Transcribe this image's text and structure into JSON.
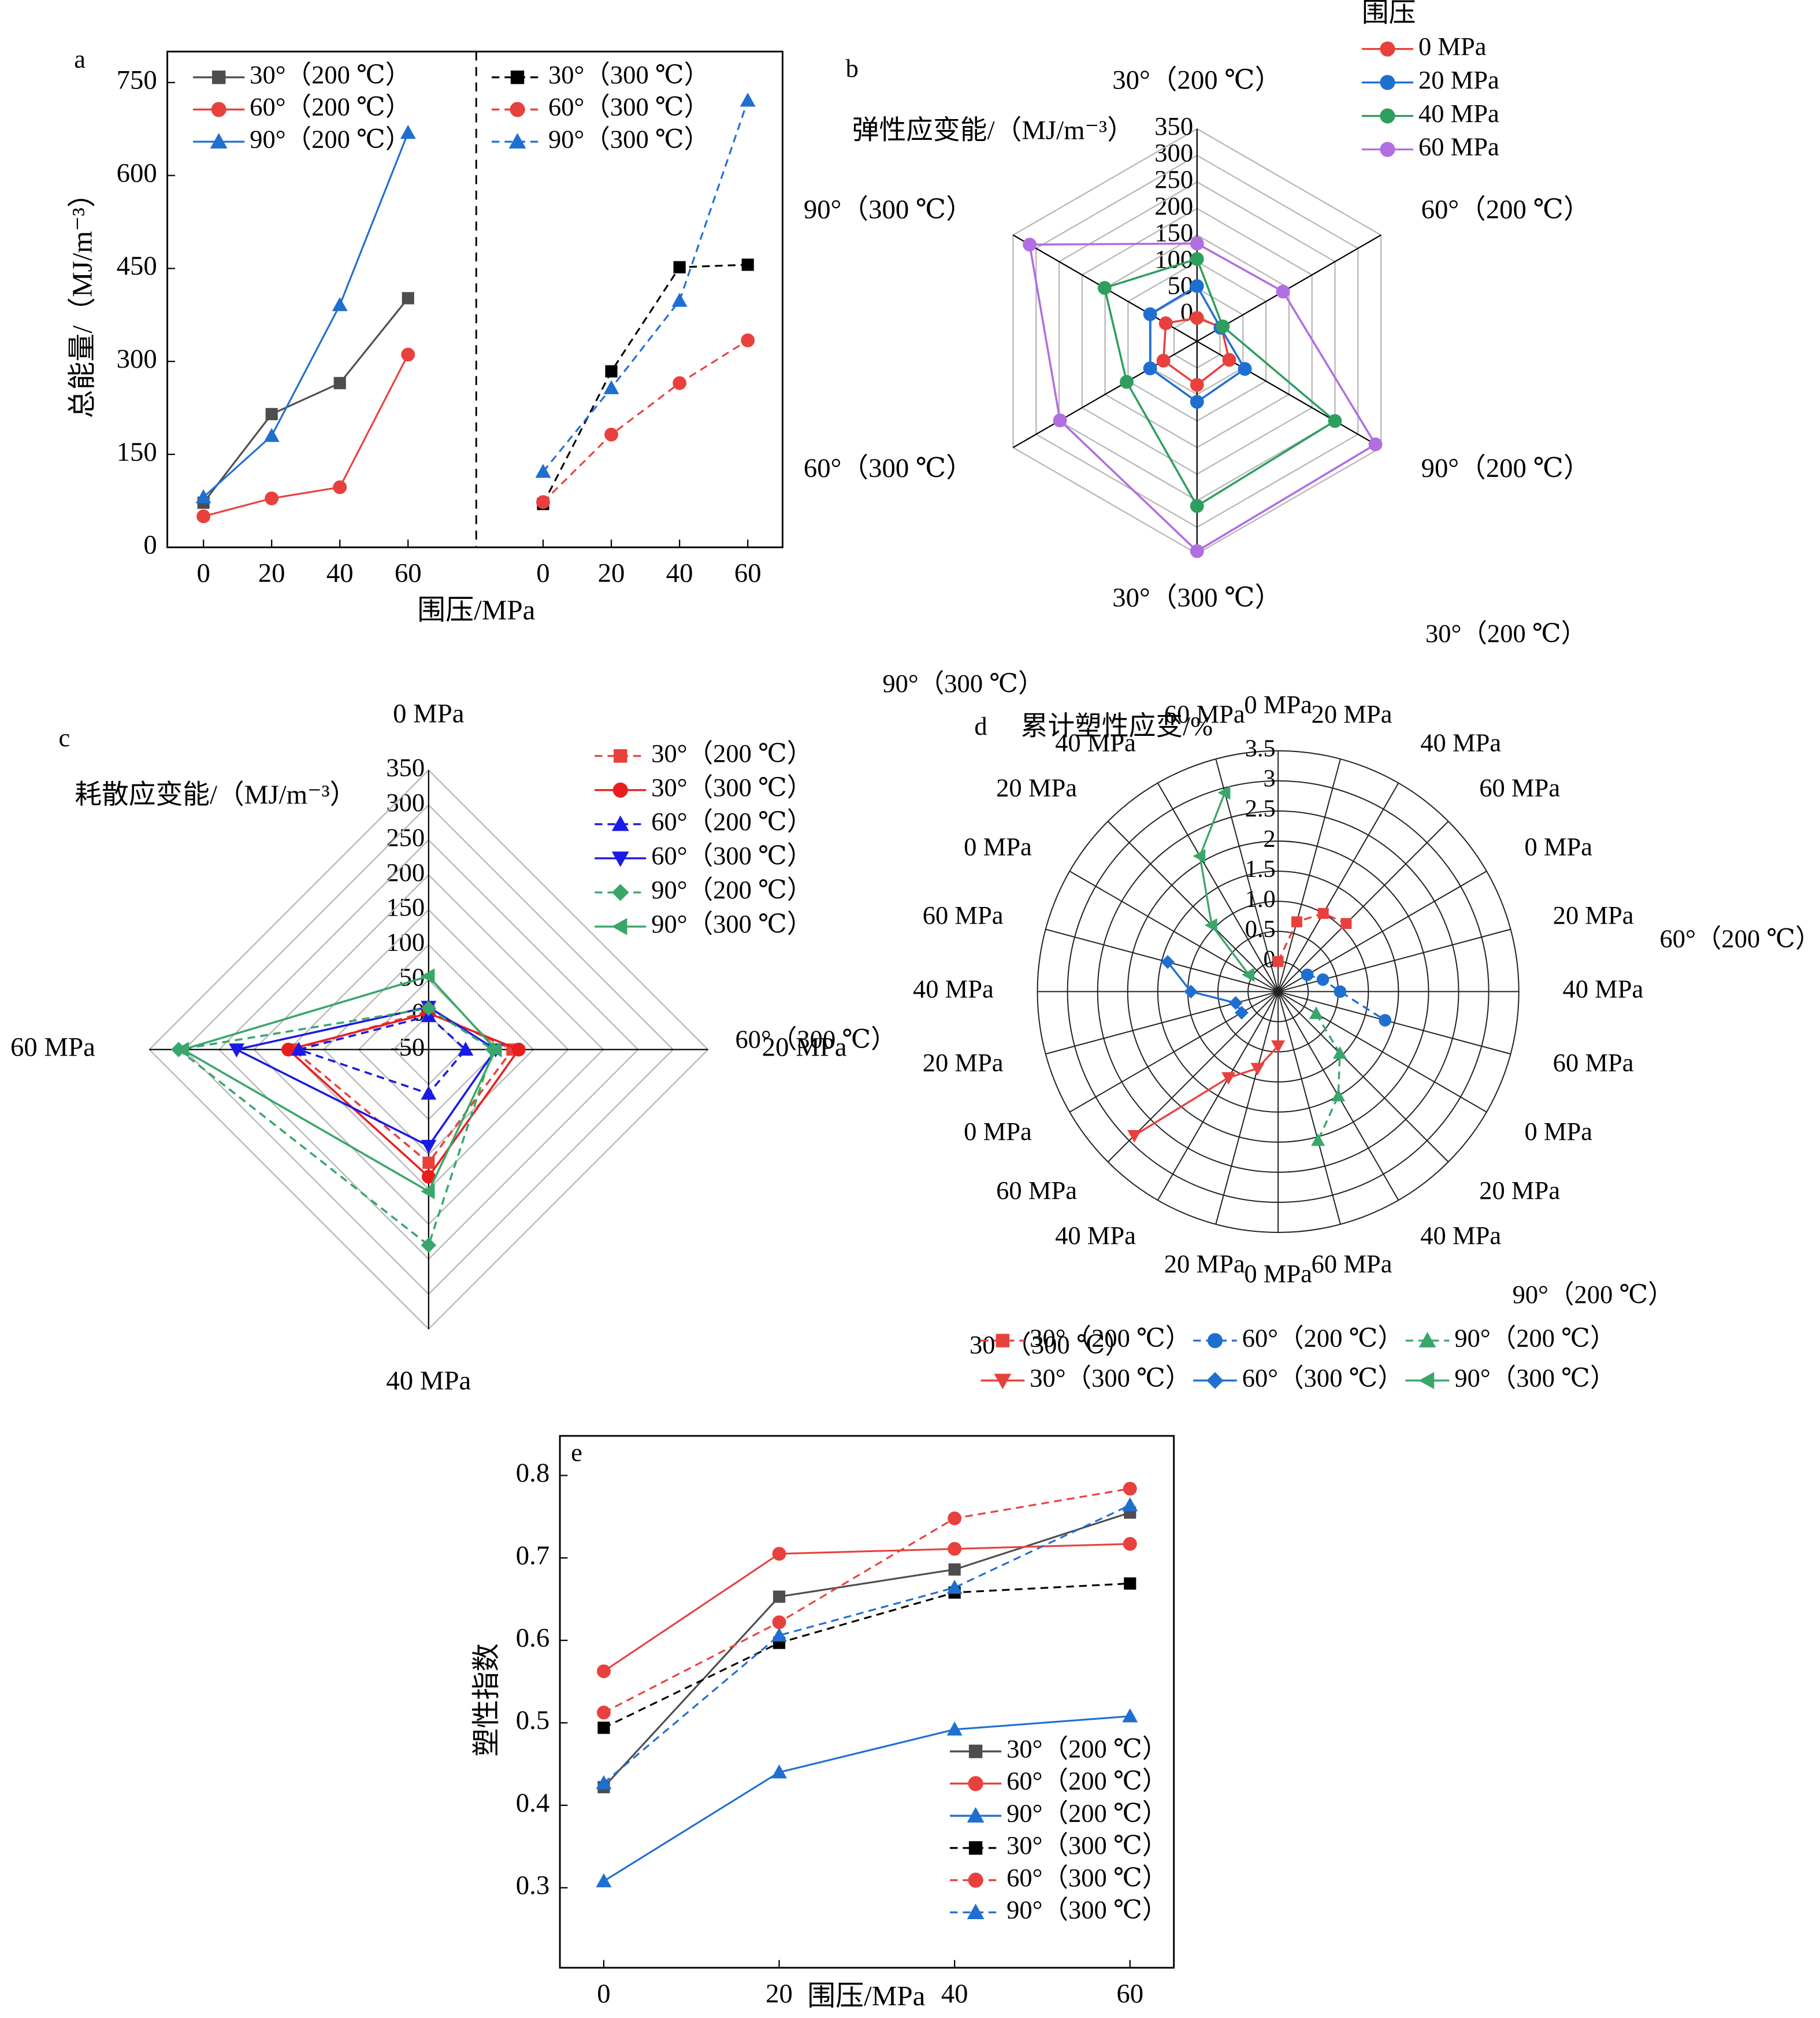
{
  "chart_data": [
    {
      "type": "line",
      "label": "a",
      "ylabel": "总能量/（MJ/m⁻³）",
      "xlabel": "围压/MPa",
      "ylim": [
        0,
        800
      ],
      "yticks": [
        0,
        150,
        300,
        450,
        600,
        750
      ],
      "panels": [
        {
          "x": [
            0,
            20,
            40,
            60
          ],
          "xlim": [
            -10.6,
            80
          ],
          "xticks": [
            0,
            20,
            40,
            60
          ],
          "series": [
            {
              "name": "30°（200 ℃）",
              "color": "#4d4d4d",
              "marker": "square",
              "linestyle": "solid",
              "values": [
                72,
                215,
                265,
                402
              ]
            },
            {
              "name": "60°（200 ℃）",
              "color": "#e8413d",
              "marker": "circle",
              "linestyle": "solid",
              "values": [
                50,
                79,
                97,
                311
              ]
            },
            {
              "name": "90°（200 ℃）",
              "color": "#1f6fd1",
              "marker": "triangle-up",
              "linestyle": "solid",
              "values": [
                81,
                180,
                391,
                669
              ]
            }
          ]
        },
        {
          "x": [
            0,
            20,
            40,
            60
          ],
          "xlim": [
            -19.6,
            70.2
          ],
          "xticks": [
            0,
            20,
            40,
            60
          ],
          "series": [
            {
              "name": "30°（300 ℃）",
              "color": "#000000",
              "marker": "square",
              "linestyle": "dashed",
              "values": [
                70,
                284,
                452,
                456
              ]
            },
            {
              "name": "60°（300 ℃）",
              "color": "#e8413d",
              "marker": "circle",
              "linestyle": "dashed",
              "values": [
                73,
                182,
                265,
                334
              ]
            },
            {
              "name": "90°（300 ℃）",
              "color": "#1f6fd1",
              "marker": "triangle-up",
              "linestyle": "dashed",
              "values": [
                122,
                257,
                398,
                721
              ]
            }
          ]
        }
      ]
    },
    {
      "type": "radar",
      "label": "b",
      "title": "弹性应变能/（MJ/m⁻³）",
      "legend_title": "围压",
      "axes": [
        "30°（200 ℃）",
        "60°（200 ℃）",
        "90°（200 ℃）",
        "30°（300 ℃）",
        "60°（300 ℃）",
        "90°（300 ℃）"
      ],
      "rlim": [
        -50,
        350
      ],
      "rticks": [
        0,
        50,
        100,
        150,
        200,
        250,
        300,
        350
      ],
      "series": [
        {
          "name": "0 MPa",
          "color": "#e8413d",
          "marker": "circle",
          "linestyle": "solid",
          "values": [
            -6,
            3,
            20,
            32,
            23,
            18
          ]
        },
        {
          "name": "20 MPa",
          "color": "#1f6fd1",
          "marker": "circle",
          "linestyle": "solid",
          "values": [
            54,
            1,
            54,
            64,
            52,
            52
          ]
        },
        {
          "name": "40 MPa",
          "color": "#2e9e5e",
          "marker": "circle",
          "linestyle": "solid",
          "values": [
            105,
            6,
            250,
            260,
            103,
            151
          ]
        },
        {
          "name": "60 MPa",
          "color": "#b06ee0",
          "marker": "circle",
          "linestyle": "solid",
          "values": [
            134,
            137,
            338,
            345,
            248,
            314
          ]
        }
      ]
    },
    {
      "type": "radar",
      "label": "c",
      "title": "耗散应变能/（MJ/m⁻³）",
      "axes": [
        "0 MPa",
        "20 MPa",
        "40 MPa",
        "60 MPa"
      ],
      "rlim": [
        -50,
        350
      ],
      "rticks": [
        -50,
        0,
        50,
        100,
        150,
        200,
        250,
        300,
        350
      ],
      "series": [
        {
          "name": "30°（200 ℃）",
          "color": "#e8413d",
          "marker": "square",
          "linestyle": "dashed",
          "values": [
            5,
            70,
            112,
            144
          ]
        },
        {
          "name": "30°（300 ℃）",
          "color": "#e81e1e",
          "marker": "circle",
          "linestyle": "solid",
          "values": [
            2,
            79,
            132,
            151
          ]
        },
        {
          "name": "60°（200 ℃）",
          "color": "#1a1ae6",
          "marker": "triangle-up",
          "linestyle": "dashed",
          "values": [
            -2,
            3,
            13,
            136
          ]
        },
        {
          "name": "60°（300 ℃）",
          "color": "#1a1ae6",
          "marker": "triangle-down",
          "linestyle": "solid",
          "values": [
            11,
            46,
            88,
            225
          ]
        },
        {
          "name": "90°（200 ℃）",
          "color": "#3aa66a",
          "marker": "diamond",
          "linestyle": "dashed",
          "values": [
            9,
            42,
            230,
            308
          ]
        },
        {
          "name": "90°（300 ℃）",
          "color": "#3aa66a",
          "marker": "triangle-left",
          "linestyle": "solid",
          "values": [
            55,
            46,
            153,
            302
          ]
        }
      ]
    },
    {
      "type": "polar",
      "label": "d",
      "title": "累计塑性应变/%",
      "categories": [
        "0 MPa",
        "20 MPa",
        "40 MPa",
        "60 MPa",
        "0 MPa",
        "20 MPa",
        "40 MPa",
        "60 MPa",
        "0 MPa",
        "20 MPa",
        "40 MPa",
        "60 MPa",
        "0 MPa",
        "20 MPa",
        "40 MPa",
        "60 MPa",
        "0 MPa",
        "20 MPa",
        "40 MPa",
        "60 MPa",
        "0 MPa",
        "20 MPa",
        "40 MPa",
        "60 MPa"
      ],
      "groups": [
        "30°（200 ℃）",
        "60°（200 ℃）",
        "90°（200 ℃）",
        "30°（300 ℃）",
        "60°（300 ℃）",
        "90°（300 ℃）"
      ],
      "rlim": [
        -0.5,
        3.5
      ],
      "rticks": [
        0,
        0.5,
        {
          "value": 1,
          "label": "1.0"
        },
        1.5,
        2,
        2.5,
        3,
        3.5
      ],
      "series": [
        {
          "name": "30°（200 ℃）",
          "color": "#e8413d",
          "marker": "square",
          "linestyle": "dashed",
          "values": [
            0.0,
            0.7,
            1.0,
            1.1,
            null,
            null,
            null,
            null,
            null,
            null,
            null,
            null,
            null,
            null,
            null,
            null,
            null,
            null,
            null,
            null,
            null,
            null,
            null,
            null
          ]
        },
        {
          "name": "60°（200 ℃）",
          "color": "#1f6fd1",
          "marker": "circle",
          "linestyle": "dashed",
          "values": [
            null,
            null,
            null,
            null,
            0.06,
            0.27,
            0.53,
            1.34,
            null,
            null,
            null,
            null,
            null,
            null,
            null,
            null,
            null,
            null,
            null,
            null,
            null,
            null,
            null,
            null
          ]
        },
        {
          "name": "90°（200 ℃）",
          "color": "#3aa66a",
          "marker": "triangle-up",
          "linestyle": "dashed",
          "values": [
            null,
            null,
            null,
            null,
            null,
            null,
            null,
            null,
            0.23,
            0.95,
            1.5,
            2.06,
            null,
            null,
            null,
            null,
            null,
            null,
            null,
            null,
            null,
            null,
            null,
            null
          ]
        },
        {
          "name": "30°（300 ℃）",
          "color": "#e8413d",
          "marker": "triangle-down",
          "linestyle": "solid",
          "values": [
            null,
            null,
            null,
            null,
            null,
            null,
            null,
            null,
            null,
            null,
            null,
            null,
            0.4,
            0.82,
            1.15,
            2.88,
            null,
            null,
            null,
            null,
            null,
            null,
            null,
            null
          ]
        },
        {
          "name": "60°（300 ℃）",
          "color": "#1f6fd1",
          "marker": "diamond",
          "linestyle": "solid",
          "values": [
            null,
            null,
            null,
            null,
            null,
            null,
            null,
            null,
            null,
            null,
            null,
            null,
            null,
            null,
            null,
            null,
            0.2,
            0.23,
            0.95,
            1.4,
            null,
            null,
            null,
            null
          ]
        },
        {
          "name": "90°（300 ℃）",
          "color": "#3aa66a",
          "marker": "triangle-left",
          "linestyle": "solid",
          "values": [
            null,
            null,
            null,
            null,
            null,
            null,
            null,
            null,
            null,
            null,
            null,
            null,
            null,
            null,
            null,
            null,
            null,
            null,
            null,
            null,
            0.06,
            1.06,
            2.1,
            2.92
          ]
        }
      ]
    },
    {
      "type": "line",
      "label": "e",
      "ylabel": "塑性指数",
      "xlabel": "围压/MPa",
      "ylim": [
        0.203,
        0.848
      ],
      "yticks": [
        0.3,
        0.4,
        0.5,
        0.6,
        0.7,
        0.8
      ],
      "x": [
        0,
        20,
        40,
        60
      ],
      "xlim": [
        -5,
        65
      ],
      "xticks": [
        0,
        20,
        40,
        60
      ],
      "series": [
        {
          "name": "30°（200 ℃）",
          "color": "#4d4d4d",
          "marker": "square",
          "linestyle": "solid",
          "values": [
            0.422,
            0.653,
            0.686,
            0.755
          ]
        },
        {
          "name": "60°（200 ℃）",
          "color": "#e8413d",
          "marker": "circle",
          "linestyle": "solid",
          "values": [
            0.5625,
            0.705,
            0.711,
            0.717
          ]
        },
        {
          "name": "90°（200 ℃）",
          "color": "#1f6fd1",
          "marker": "triangle-up",
          "linestyle": "solid",
          "values": [
            0.308,
            0.44,
            0.492,
            0.508
          ]
        },
        {
          "name": "30°（300 ℃）",
          "color": "#000000",
          "marker": "square",
          "linestyle": "dashed",
          "values": [
            0.494,
            0.597,
            0.658,
            0.669
          ]
        },
        {
          "name": "60°（300 ℃）",
          "color": "#e8413d",
          "marker": "circle",
          "linestyle": "dashed",
          "values": [
            0.5125,
            0.622,
            0.748,
            0.784
          ]
        },
        {
          "name": "90°（300 ℃）",
          "color": "#1f6fd1",
          "marker": "triangle-up",
          "linestyle": "dashed",
          "values": [
            0.427,
            0.606,
            0.664,
            0.764
          ]
        }
      ]
    }
  ]
}
